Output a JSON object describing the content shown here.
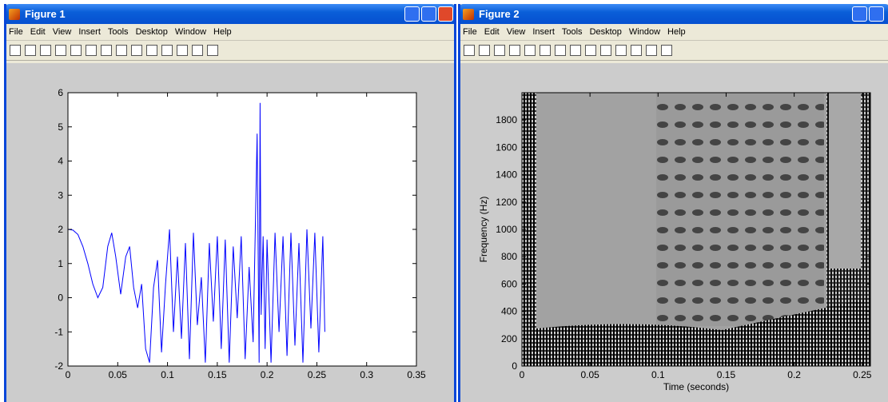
{
  "windows": [
    {
      "title": "Figure 1",
      "menu": [
        "File",
        "Edit",
        "View",
        "Insert",
        "Tools",
        "Desktop",
        "Window",
        "Help"
      ]
    },
    {
      "title": "Figure 2",
      "menu": [
        "File",
        "Edit",
        "View",
        "Insert",
        "Tools",
        "Desktop",
        "Window",
        "Help"
      ]
    }
  ],
  "chart_data": [
    {
      "type": "line",
      "color": "#0000ff",
      "x": [
        0,
        0.005,
        0.01,
        0.015,
        0.02,
        0.025,
        0.03,
        0.035,
        0.04,
        0.044,
        0.048,
        0.053,
        0.058,
        0.062,
        0.066,
        0.07,
        0.074,
        0.078,
        0.082,
        0.086,
        0.09,
        0.094,
        0.098,
        0.102,
        0.106,
        0.11,
        0.114,
        0.118,
        0.122,
        0.126,
        0.13,
        0.134,
        0.138,
        0.142,
        0.146,
        0.15,
        0.154,
        0.158,
        0.162,
        0.166,
        0.17,
        0.174,
        0.178,
        0.182,
        0.186,
        0.19,
        0.192,
        0.193,
        0.194,
        0.196,
        0.198,
        0.2,
        0.204,
        0.208,
        0.212,
        0.216,
        0.22,
        0.224,
        0.228,
        0.232,
        0.236,
        0.24,
        0.244,
        0.248,
        0.252,
        0.256,
        0.258
      ],
      "values": [
        2,
        1.98,
        1.85,
        1.5,
        1.0,
        0.4,
        0.0,
        0.3,
        1.5,
        1.9,
        1.2,
        0.1,
        1.2,
        1.5,
        0.3,
        -0.3,
        0.4,
        -1.5,
        -1.9,
        0.3,
        1.1,
        -1.6,
        0.4,
        2.0,
        -1.0,
        1.2,
        -1.2,
        1.6,
        -1.8,
        1.9,
        -0.8,
        0.6,
        -1.9,
        1.6,
        -0.7,
        1.8,
        -1.5,
        1.7,
        -1.9,
        1.5,
        -0.6,
        1.8,
        -1.8,
        0.9,
        -1.3,
        4.8,
        -1.9,
        5.7,
        -0.5,
        1.8,
        -1.5,
        1.7,
        -1.9,
        1.9,
        -1.0,
        1.8,
        -1.7,
        1.9,
        -1.4,
        1.6,
        -1.9,
        2.0,
        -0.9,
        1.9,
        -1.6,
        1.8,
        -1.0
      ],
      "xlim": [
        0,
        0.35
      ],
      "xticks": [
        0,
        0.05,
        0.1,
        0.15,
        0.2,
        0.25,
        0.3,
        0.35
      ],
      "ylim": [
        -2,
        6
      ],
      "yticks": [
        -2,
        -1,
        0,
        1,
        2,
        3,
        4,
        5,
        6
      ]
    },
    {
      "type": "spectrogram",
      "x_label": "Time (seconds)",
      "y_label": "Frequency (Hz)",
      "xlim": [
        0,
        0.256
      ],
      "xticks": [
        0,
        0.05,
        0.1,
        0.15,
        0.2,
        0.25
      ],
      "ylim": [
        0,
        2000
      ],
      "yticks": [
        0,
        200,
        400,
        600,
        800,
        1000,
        1200,
        1400,
        1600,
        1800
      ]
    }
  ]
}
